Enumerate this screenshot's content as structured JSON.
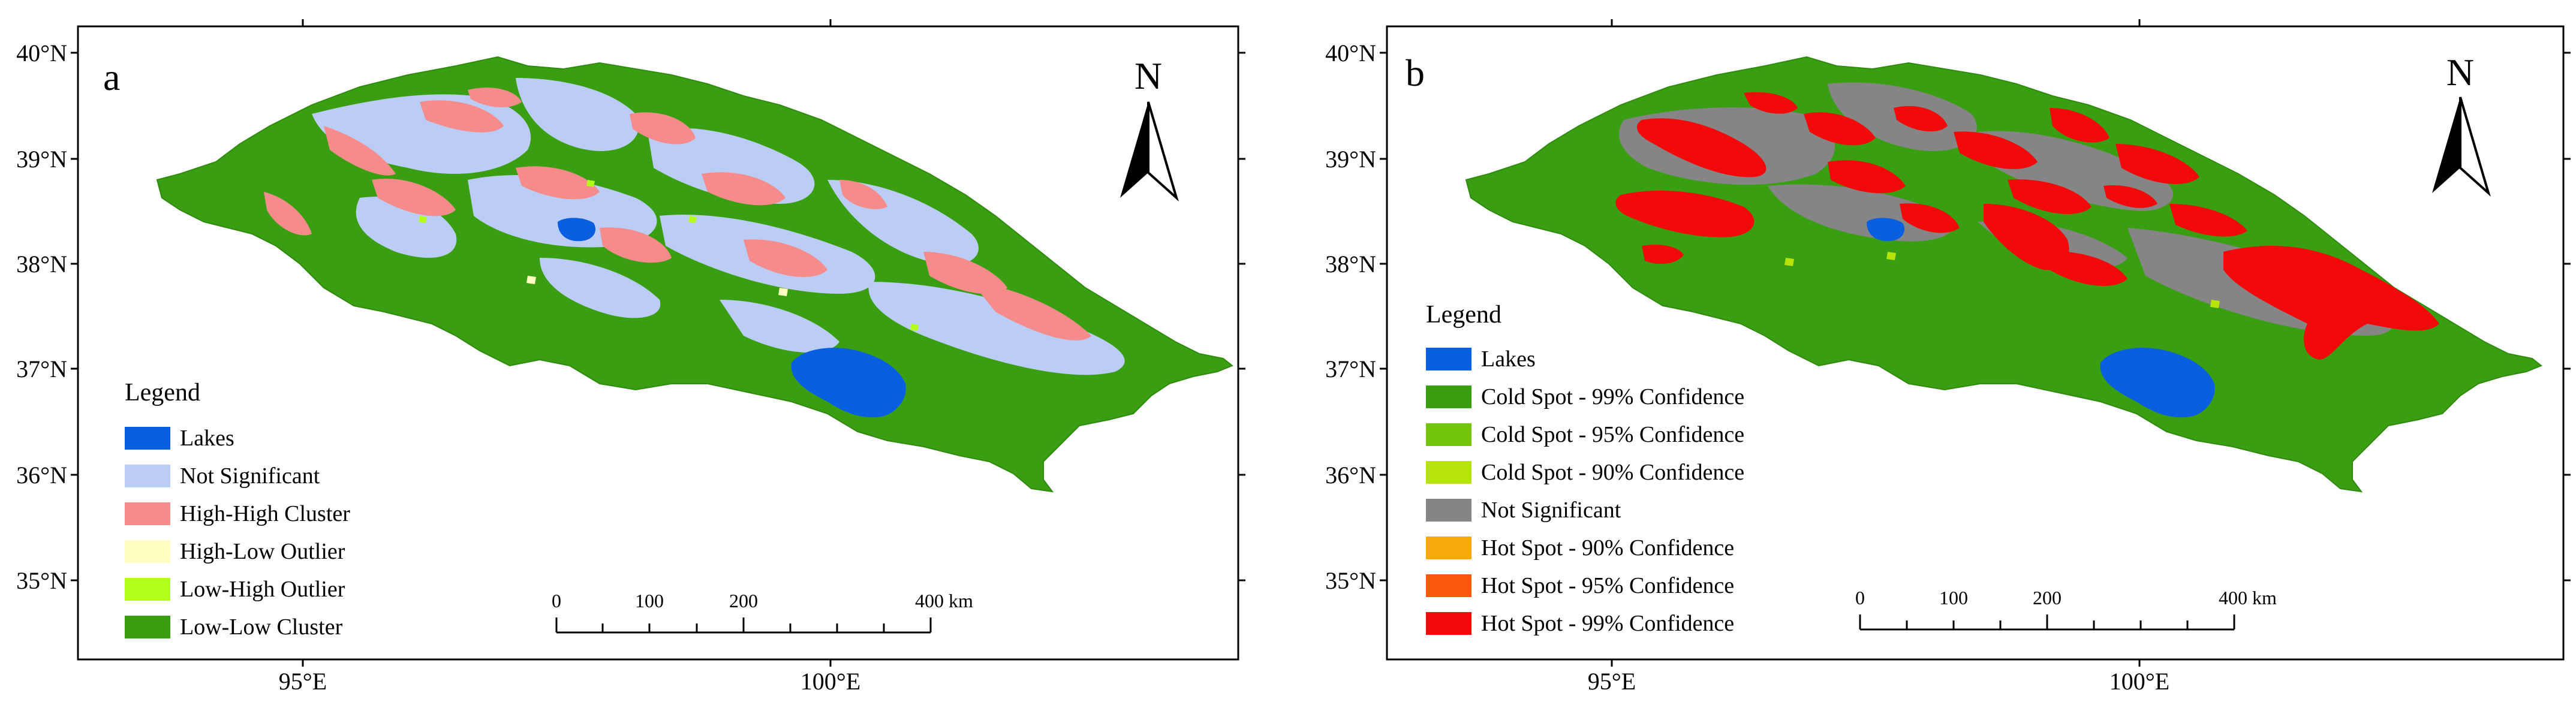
{
  "panel_a": {
    "panel_letter": "a",
    "north_label": "N",
    "lat_labels": [
      "40°N",
      "39°N",
      "38°N",
      "37°N",
      "36°N",
      "35°N"
    ],
    "lon_labels": [
      "95°E",
      "100°E"
    ],
    "legend": {
      "title": "Legend",
      "items": [
        {
          "label": "Lakes",
          "color": "#0a5fe0"
        },
        {
          "label": "Not Significant",
          "color": "#bccdf5"
        },
        {
          "label": "High-High Cluster",
          "color": "#f58b8b"
        },
        {
          "label": "High-Low Outlier",
          "color": "#ffffc2"
        },
        {
          "label": "Low-High Outlier",
          "color": "#b2ff1a"
        },
        {
          "label": "Low-Low Cluster",
          "color": "#3a9e12"
        }
      ]
    },
    "scale": {
      "ticks": [
        "0",
        "100",
        "200",
        "400 km"
      ]
    }
  },
  "panel_b": {
    "panel_letter": "b",
    "north_label": "N",
    "lat_labels": [
      "40°N",
      "39°N",
      "38°N",
      "37°N",
      "36°N",
      "35°N"
    ],
    "lon_labels": [
      "95°E",
      "100°E"
    ],
    "legend": {
      "title": "Legend",
      "items": [
        {
          "label": "Lakes",
          "color": "#0a5fe0"
        },
        {
          "label": "Cold Spot - 99% Confidence",
          "color": "#3a9e12"
        },
        {
          "label": "Cold Spot - 95% Confidence",
          "color": "#72c40c"
        },
        {
          "label": "Cold Spot - 90% Confidence",
          "color": "#b5e30a"
        },
        {
          "label": "Not Significant",
          "color": "#858585"
        },
        {
          "label": "Hot Spot - 90% Confidence",
          "color": "#f7a80a"
        },
        {
          "label": "Hot Spot - 95% Confidence",
          "color": "#fb5a0c"
        },
        {
          "label": "Hot Spot - 99% Confidence",
          "color": "#f20a0a"
        }
      ]
    },
    "scale": {
      "ticks": [
        "0",
        "100",
        "200",
        "400 km"
      ]
    }
  }
}
